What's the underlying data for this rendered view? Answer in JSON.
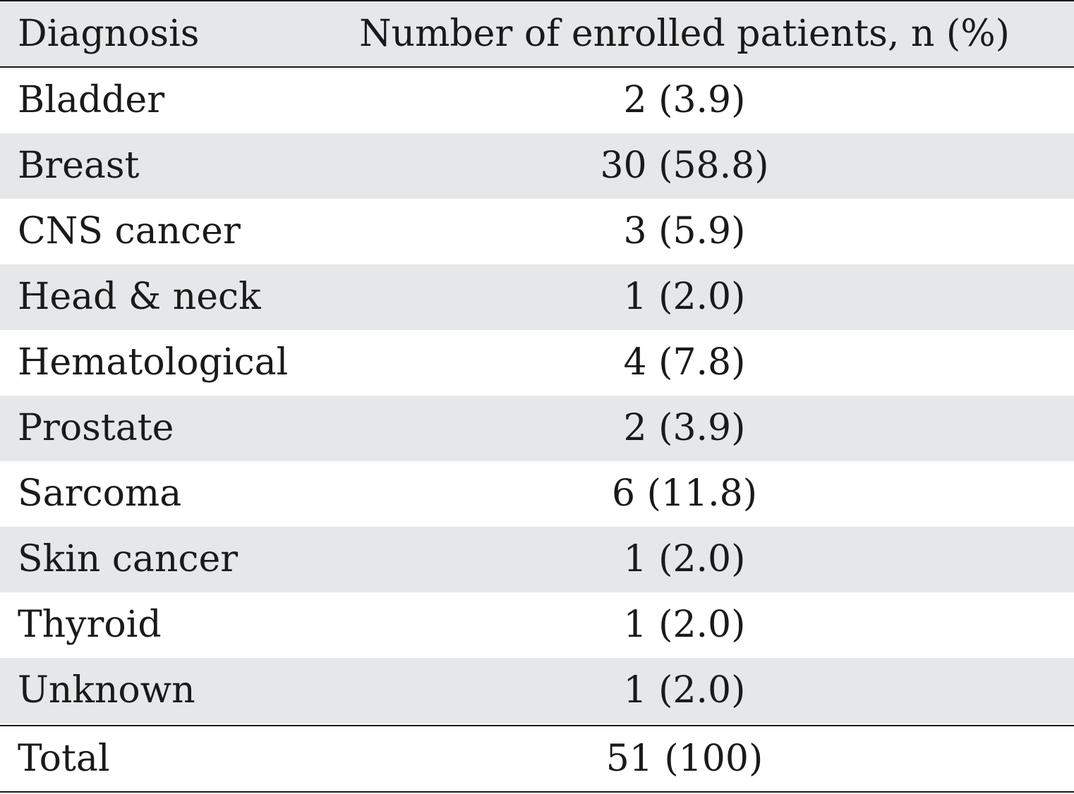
{
  "table": {
    "headers": [
      "Diagnosis",
      "Number of enrolled patients, n (%)"
    ],
    "rows": [
      {
        "diagnosis": "Bladder",
        "value": "2 (3.9)"
      },
      {
        "diagnosis": "Breast",
        "value": "30 (58.8)"
      },
      {
        "diagnosis": "CNS cancer",
        "value": "3 (5.9)"
      },
      {
        "diagnosis": "Head & neck",
        "value": "1 (2.0)"
      },
      {
        "diagnosis": "Hematological",
        "value": "4 (7.8)"
      },
      {
        "diagnosis": "Prostate",
        "value": "2 (3.9)"
      },
      {
        "diagnosis": "Sarcoma",
        "value": "6 (11.8)"
      },
      {
        "diagnosis": "Skin cancer",
        "value": "1 (2.0)"
      },
      {
        "diagnosis": "Thyroid",
        "value": "1 (2.0)"
      },
      {
        "diagnosis": "Unknown",
        "value": "1 (2.0)"
      }
    ],
    "total": {
      "diagnosis": "Total",
      "value": "51 (100)"
    }
  },
  "colors": {
    "shaded_row": "#e6e7e9",
    "rule": "#1a1a1a",
    "text": "#1a1a1a"
  }
}
